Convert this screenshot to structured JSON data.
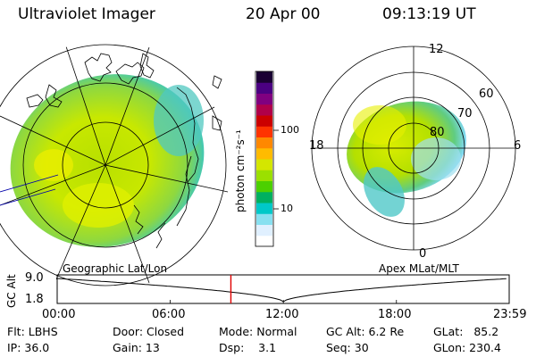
{
  "header": {
    "instrument": "Ultraviolet Imager",
    "date": "20 Apr 00",
    "time": "09:13:19 UT"
  },
  "colorbar": {
    "unit_label": "photon cm⁻²s⁻¹",
    "ticks": [
      "100",
      "10"
    ],
    "colors": [
      "#1a0033",
      "#4b0082",
      "#800080",
      "#b0004a",
      "#cc0000",
      "#ff3300",
      "#ff8800",
      "#ffbb00",
      "#d4e600",
      "#9be000",
      "#4cd000",
      "#00b060",
      "#00c8c8",
      "#88e0f0",
      "#e0f0ff",
      "#ffffff"
    ]
  },
  "polar": {
    "clock_labels": [
      "12",
      "18",
      "6",
      "0"
    ],
    "lat_labels": [
      "60",
      "70",
      "80"
    ]
  },
  "projections": {
    "left": "Geographic Lat/Lon",
    "right": "Apex MLat/MLT"
  },
  "timeline": {
    "axis_label": "GC Alt",
    "y_ticks": [
      "9.0",
      "1.8"
    ],
    "x_ticks": [
      "00:00",
      "06:00",
      "12:00",
      "18:00",
      "23:59"
    ],
    "marker_time": "09:13",
    "marker_color": "#e00000"
  },
  "info": {
    "filter": "Flt: LBHS",
    "ip": "IP: 36.0",
    "door": "Door: Closed",
    "gain": "Gain: 13",
    "mode": "Mode: Normal",
    "dsp": "Dsp:    3.1",
    "gc_alt": "GC Alt: 6.2 Re",
    "seq": "Seq: 30",
    "glat": "GLat:   85.2",
    "glon": "GLon: 230.4"
  }
}
